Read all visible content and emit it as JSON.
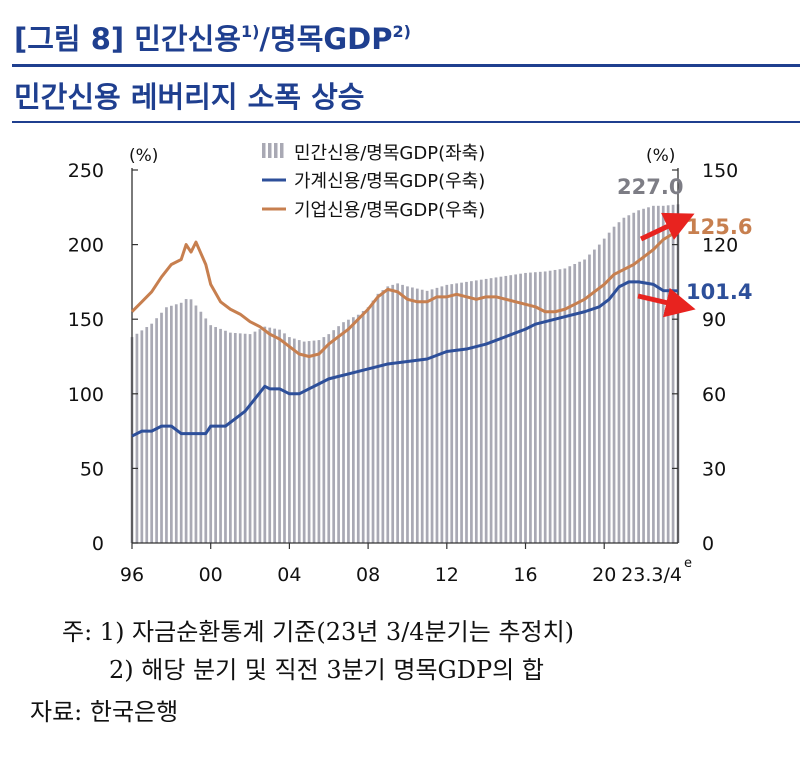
{
  "header": {
    "title": "[그림 8] 민간신용",
    "title_sup1": "1)",
    "title_mid": "/명목GDP",
    "title_sup2": "2)",
    "subtitle": "민간신용 레버리지 소폭 상승"
  },
  "notes": {
    "line1": "주: 1) 자금순환통계 기준(23년 3/4분기는 추정치)",
    "line2": "2) 해당 분기 및 직전 3분기 명목GDP의 합",
    "source": "자료: 한국은행"
  },
  "colors": {
    "title": "#1f3f8f",
    "bars": "#a9a9b4",
    "household": "#2d4f9a",
    "corporate": "#c77f4f",
    "arrow": "#e8231f"
  },
  "chart_data": {
    "type": "bar+line",
    "x_start": 1996,
    "x_end_label": "23.3/4",
    "x_end_suffix": "e",
    "x_ticks": [
      "96",
      "00",
      "04",
      "08",
      "12",
      "16",
      "20"
    ],
    "left_unit": "(%)",
    "right_unit": "(%)",
    "left_ticks": [
      "0",
      "50",
      "100",
      "150",
      "200",
      "250"
    ],
    "right_ticks": [
      "0",
      "30",
      "60",
      "90",
      "120",
      "150"
    ],
    "left_ylim": [
      0,
      250
    ],
    "right_ylim": [
      0,
      150
    ],
    "legend": [
      {
        "key": "private",
        "label": "민간신용/명목GDP(좌축)",
        "shape": "bar"
      },
      {
        "key": "household",
        "label": "가계신용/명목GDP(우축)",
        "shape": "line"
      },
      {
        "key": "corporate",
        "label": "기업신용/명목GDP(우축)",
        "shape": "line"
      }
    ],
    "series": [
      {
        "key": "private",
        "axis": "left",
        "points": [
          [
            1996.0,
            138
          ],
          [
            1997.0,
            147
          ],
          [
            1997.75,
            158
          ],
          [
            1998.5,
            161
          ],
          [
            1998.9,
            165
          ],
          [
            1999.5,
            155
          ],
          [
            2000.0,
            146
          ],
          [
            2001.0,
            141
          ],
          [
            2002.0,
            140
          ],
          [
            2002.75,
            145
          ],
          [
            2003.5,
            143
          ],
          [
            2004.0,
            138
          ],
          [
            2004.75,
            135
          ],
          [
            2005.5,
            136
          ],
          [
            2006.0,
            140
          ],
          [
            2006.75,
            148
          ],
          [
            2007.5,
            153
          ],
          [
            2008.0,
            158
          ],
          [
            2008.5,
            167
          ],
          [
            2009.0,
            172
          ],
          [
            2009.5,
            174
          ],
          [
            2010.0,
            172
          ],
          [
            2011.0,
            169
          ],
          [
            2012.0,
            173
          ],
          [
            2013.0,
            175
          ],
          [
            2014.0,
            177
          ],
          [
            2015.0,
            179
          ],
          [
            2016.0,
            181
          ],
          [
            2017.0,
            182
          ],
          [
            2018.0,
            184
          ],
          [
            2019.0,
            190
          ],
          [
            2019.75,
            200
          ],
          [
            2020.5,
            212
          ],
          [
            2021.0,
            218
          ],
          [
            2021.75,
            223
          ],
          [
            2022.5,
            226
          ],
          [
            2023.0,
            226
          ],
          [
            2023.75,
            227
          ]
        ]
      },
      {
        "key": "household",
        "axis": "right",
        "points": [
          [
            1996.0,
            43
          ],
          [
            1996.5,
            45
          ],
          [
            1997.0,
            45
          ],
          [
            1997.5,
            47
          ],
          [
            1998.0,
            47
          ],
          [
            1998.5,
            44
          ],
          [
            1999.0,
            44
          ],
          [
            1999.75,
            44
          ],
          [
            2000.0,
            47
          ],
          [
            2000.75,
            47
          ],
          [
            2001.25,
            50
          ],
          [
            2001.75,
            53
          ],
          [
            2002.25,
            58
          ],
          [
            2002.75,
            63
          ],
          [
            2003.0,
            62
          ],
          [
            2003.5,
            62
          ],
          [
            2004.0,
            60
          ],
          [
            2004.5,
            60
          ],
          [
            2005.0,
            62
          ],
          [
            2005.5,
            64
          ],
          [
            2006.0,
            66
          ],
          [
            2006.5,
            67
          ],
          [
            2007.0,
            68
          ],
          [
            2007.5,
            69
          ],
          [
            2008.0,
            70
          ],
          [
            2009.0,
            72
          ],
          [
            2010.0,
            73
          ],
          [
            2011.0,
            74
          ],
          [
            2012.0,
            77
          ],
          [
            2013.0,
            78
          ],
          [
            2014.0,
            80
          ],
          [
            2015.0,
            83
          ],
          [
            2016.0,
            86
          ],
          [
            2016.5,
            88
          ],
          [
            2017.0,
            89
          ],
          [
            2018.0,
            91
          ],
          [
            2019.0,
            93
          ],
          [
            2019.75,
            95
          ],
          [
            2020.25,
            98
          ],
          [
            2020.75,
            103
          ],
          [
            2021.25,
            105
          ],
          [
            2021.75,
            105
          ],
          [
            2022.5,
            104
          ],
          [
            2023.0,
            101.5
          ],
          [
            2023.75,
            101.4
          ]
        ]
      },
      {
        "key": "corporate",
        "axis": "right",
        "points": [
          [
            1996.0,
            93
          ],
          [
            1996.5,
            97
          ],
          [
            1997.0,
            101
          ],
          [
            1997.5,
            107
          ],
          [
            1998.0,
            112
          ],
          [
            1998.5,
            114
          ],
          [
            1998.75,
            120
          ],
          [
            1999.0,
            117
          ],
          [
            1999.25,
            121
          ],
          [
            1999.75,
            112
          ],
          [
            2000.0,
            104
          ],
          [
            2000.5,
            97
          ],
          [
            2001.0,
            94
          ],
          [
            2001.5,
            92
          ],
          [
            2002.0,
            89
          ],
          [
            2002.5,
            87
          ],
          [
            2003.0,
            84
          ],
          [
            2003.5,
            82
          ],
          [
            2004.0,
            79
          ],
          [
            2004.5,
            76
          ],
          [
            2005.0,
            75
          ],
          [
            2005.5,
            76
          ],
          [
            2006.0,
            80
          ],
          [
            2006.5,
            83
          ],
          [
            2007.0,
            86
          ],
          [
            2007.5,
            90
          ],
          [
            2008.0,
            94
          ],
          [
            2008.5,
            99
          ],
          [
            2009.0,
            102
          ],
          [
            2009.5,
            101
          ],
          [
            2010.0,
            98
          ],
          [
            2010.5,
            97
          ],
          [
            2011.0,
            97
          ],
          [
            2011.5,
            99
          ],
          [
            2012.0,
            99
          ],
          [
            2012.5,
            100
          ],
          [
            2013.0,
            99
          ],
          [
            2013.5,
            98
          ],
          [
            2014.0,
            99
          ],
          [
            2014.5,
            99
          ],
          [
            2015.0,
            98
          ],
          [
            2015.5,
            97
          ],
          [
            2016.0,
            96
          ],
          [
            2016.5,
            95
          ],
          [
            2017.0,
            93
          ],
          [
            2017.5,
            93
          ],
          [
            2018.0,
            94
          ],
          [
            2018.5,
            96
          ],
          [
            2019.0,
            98
          ],
          [
            2019.5,
            101
          ],
          [
            2020.0,
            104
          ],
          [
            2020.5,
            108
          ],
          [
            2021.0,
            110
          ],
          [
            2021.5,
            112
          ],
          [
            2022.0,
            115
          ],
          [
            2022.5,
            118
          ],
          [
            2023.0,
            122
          ],
          [
            2023.75,
            125.6
          ]
        ]
      }
    ],
    "annotations": [
      {
        "key": "private",
        "label": "227.0"
      },
      {
        "key": "corporate",
        "label": "125.6"
      },
      {
        "key": "household",
        "label": "101.4"
      }
    ]
  }
}
